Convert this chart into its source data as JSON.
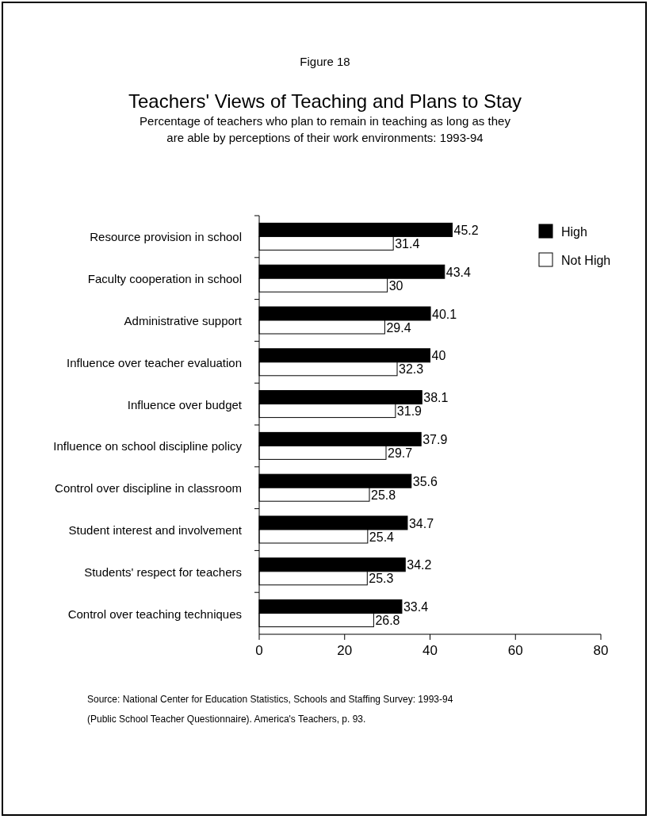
{
  "chart_data": {
    "type": "bar",
    "orientation": "horizontal",
    "title": "Teachers' Views of Teaching and Plans to Stay",
    "subtitle": "Percentage of teachers who plan to remain in teaching as long as they are able by  perceptions of their work environments: 1993-94",
    "categories": [
      "Resource provision in school",
      "Faculty cooperation in school",
      "Administrative support",
      "Influence over teacher evaluation",
      "Influence over budget",
      "Influence on school discipline policy",
      "Control over discipline in classroom",
      "Student interest and involvement",
      "Students' respect for teachers",
      "Control over teaching techniques"
    ],
    "series": [
      {
        "name": "High",
        "color": "#000000",
        "values": [
          45.2,
          43.4,
          40.1,
          40,
          38.1,
          37.9,
          35.6,
          34.7,
          34.2,
          33.4
        ]
      },
      {
        "name": "Not High",
        "color": "#ffffff",
        "values": [
          31.4,
          30,
          29.4,
          32.3,
          31.9,
          29.7,
          25.8,
          25.4,
          25.3,
          26.8
        ]
      }
    ],
    "xlim": [
      0,
      80
    ],
    "xticks": [
      0,
      20,
      40,
      60,
      80
    ],
    "data_labels": true,
    "legend": "top right",
    "annotations": [
      "Figure 18",
      "Source:  National Center for Education Statistics, Schools and Staffing Survey: 1993-94",
      "(Public School Teacher Questionnaire).  America's Teachers, p. 93."
    ]
  }
}
